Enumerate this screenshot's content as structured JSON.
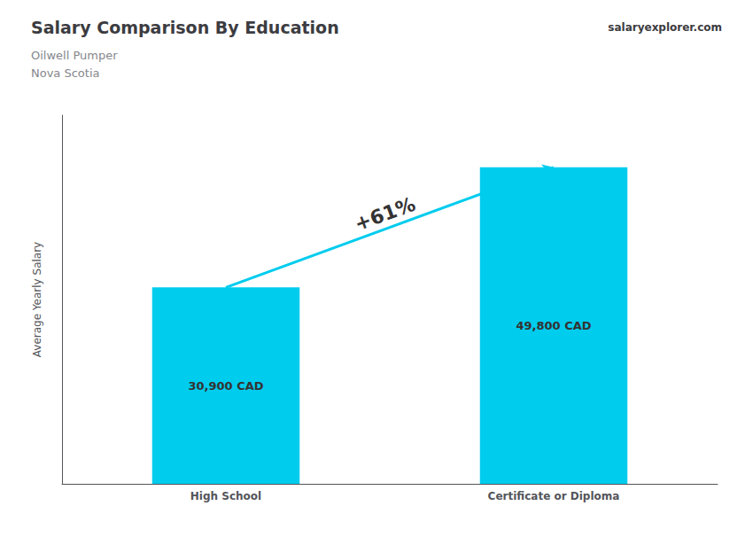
{
  "chart_data": {
    "type": "bar",
    "title": "Salary Comparison By Education",
    "subtitle": "Oilwell Pumper\nNova Scotia",
    "annotations": [
      "+61%",
      "salaryexplorer.com"
    ],
    "ylabel": "Average Yearly Salary",
    "categories": [
      "High School",
      "Certificate or Diploma"
    ],
    "values": [
      30900,
      49800
    ],
    "value_labels": [
      "30,900 CAD",
      "49,800 CAD"
    ],
    "data_labels": true,
    "color": "#00ccee",
    "ylim": [
      0,
      58000
    ],
    "tick_labels": false,
    "grid": false
  }
}
